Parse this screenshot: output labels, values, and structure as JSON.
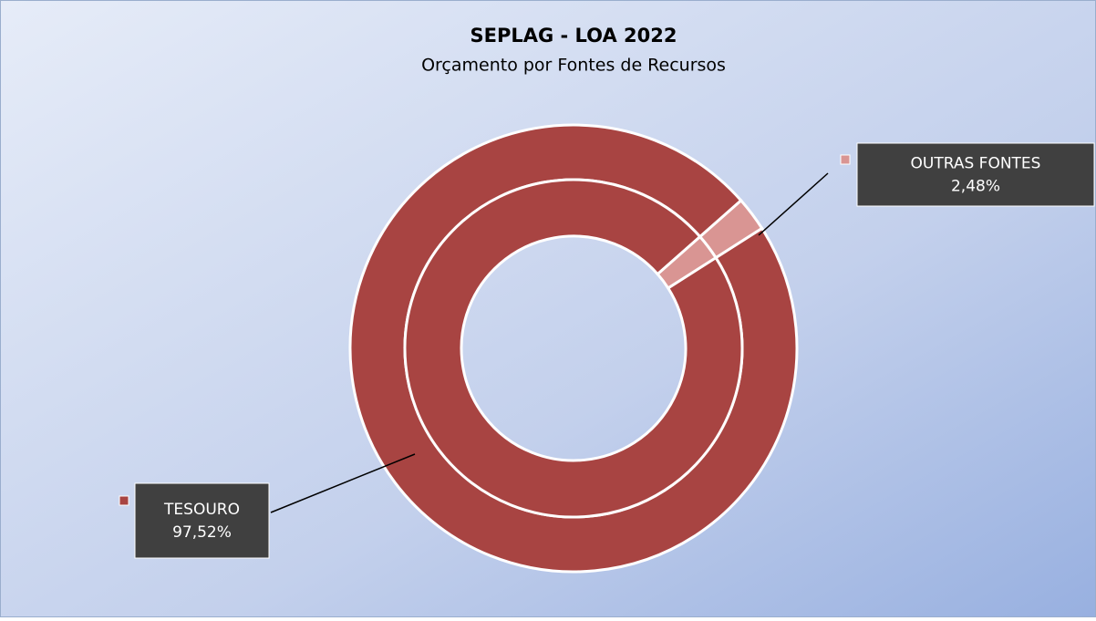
{
  "chart_data": {
    "type": "donut",
    "title": "SEPLAG - LOA 2022",
    "subtitle": "Orçamento por Fontes de Recursos",
    "categories": [
      "TESOURO",
      "OUTRAS FONTES"
    ],
    "colors": [
      "#a84442",
      "#d99593"
    ],
    "series": [
      {
        "values": [
          97.52,
          2.48
        ],
        "value_labels": [
          "97,52%",
          "2,48%"
        ]
      },
      {
        "values": [
          97.52,
          2.48
        ]
      }
    ]
  }
}
